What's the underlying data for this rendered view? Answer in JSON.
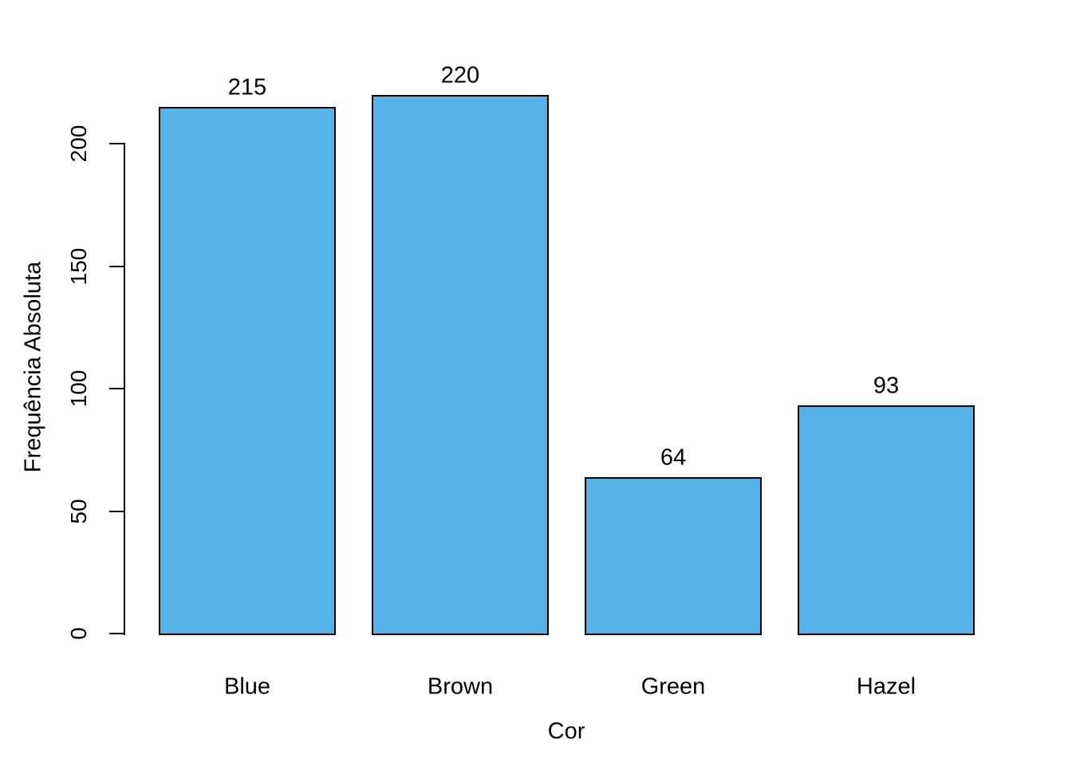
{
  "chart_data": {
    "type": "bar",
    "title": "",
    "xlabel": "Cor",
    "ylabel": "Frequência Absoluta",
    "categories": [
      "Blue",
      "Brown",
      "Green",
      "Hazel"
    ],
    "values": [
      215,
      220,
      64,
      93
    ],
    "value_labels": [
      "215",
      "220",
      "64",
      "93"
    ],
    "yticks": [
      0,
      50,
      100,
      150,
      200
    ],
    "ylim": [
      0,
      240
    ],
    "grid": false,
    "legend": false,
    "colors": {
      "bar_fill": "#56B1E7",
      "bar_border": "#000000",
      "axis": "#000000",
      "text": "#000000",
      "background": "#FFFFFF"
    }
  }
}
